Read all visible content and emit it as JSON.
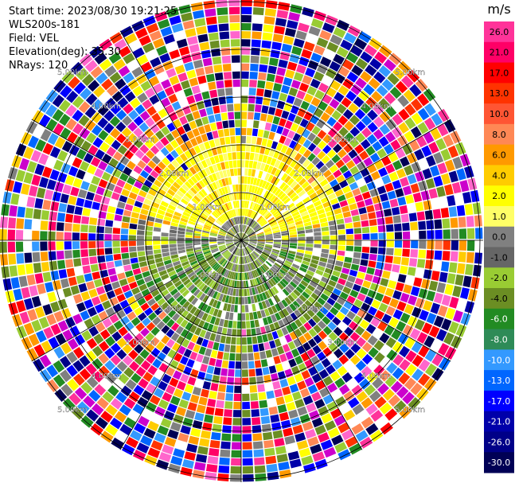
{
  "info": {
    "start_time": "Start time: 2023/08/30 19:21:25",
    "instrument": "WLS200s-181",
    "field": "Field: VEL",
    "elevation": "Elevation(deg): 35.30",
    "nrays": "NRays: 120"
  },
  "colorbar": {
    "unit": "m/s",
    "ticks": [
      "26.0",
      "21.0",
      "17.0",
      "13.0",
      "10.0",
      "8.0",
      "6.0",
      "4.0",
      "2.0",
      "1.0",
      "0.0",
      "-1.0",
      "-2.0",
      "-4.0",
      "-6.0",
      "-8.0",
      "-10.0",
      "-13.0",
      "-17.0",
      "-21.0",
      "-26.0",
      "-30.0"
    ],
    "colors": [
      "#ff3399",
      "#ff0066",
      "#ff0000",
      "#ff3300",
      "#ff5533",
      "#ff8855",
      "#ff9900",
      "#ffcc00",
      "#ffff00",
      "#ffff66",
      "#808080",
      "#666666",
      "#99cc33",
      "#6b8e23",
      "#228b22",
      "#2e8b57",
      "#3399ff",
      "#0066ff",
      "#0000ff",
      "#0000aa",
      "#000088",
      "#000055"
    ]
  },
  "range_rings": {
    "labels": [
      "1.00km",
      "2.00km",
      "3.00km",
      "4.00km",
      "5.00km"
    ]
  }
}
